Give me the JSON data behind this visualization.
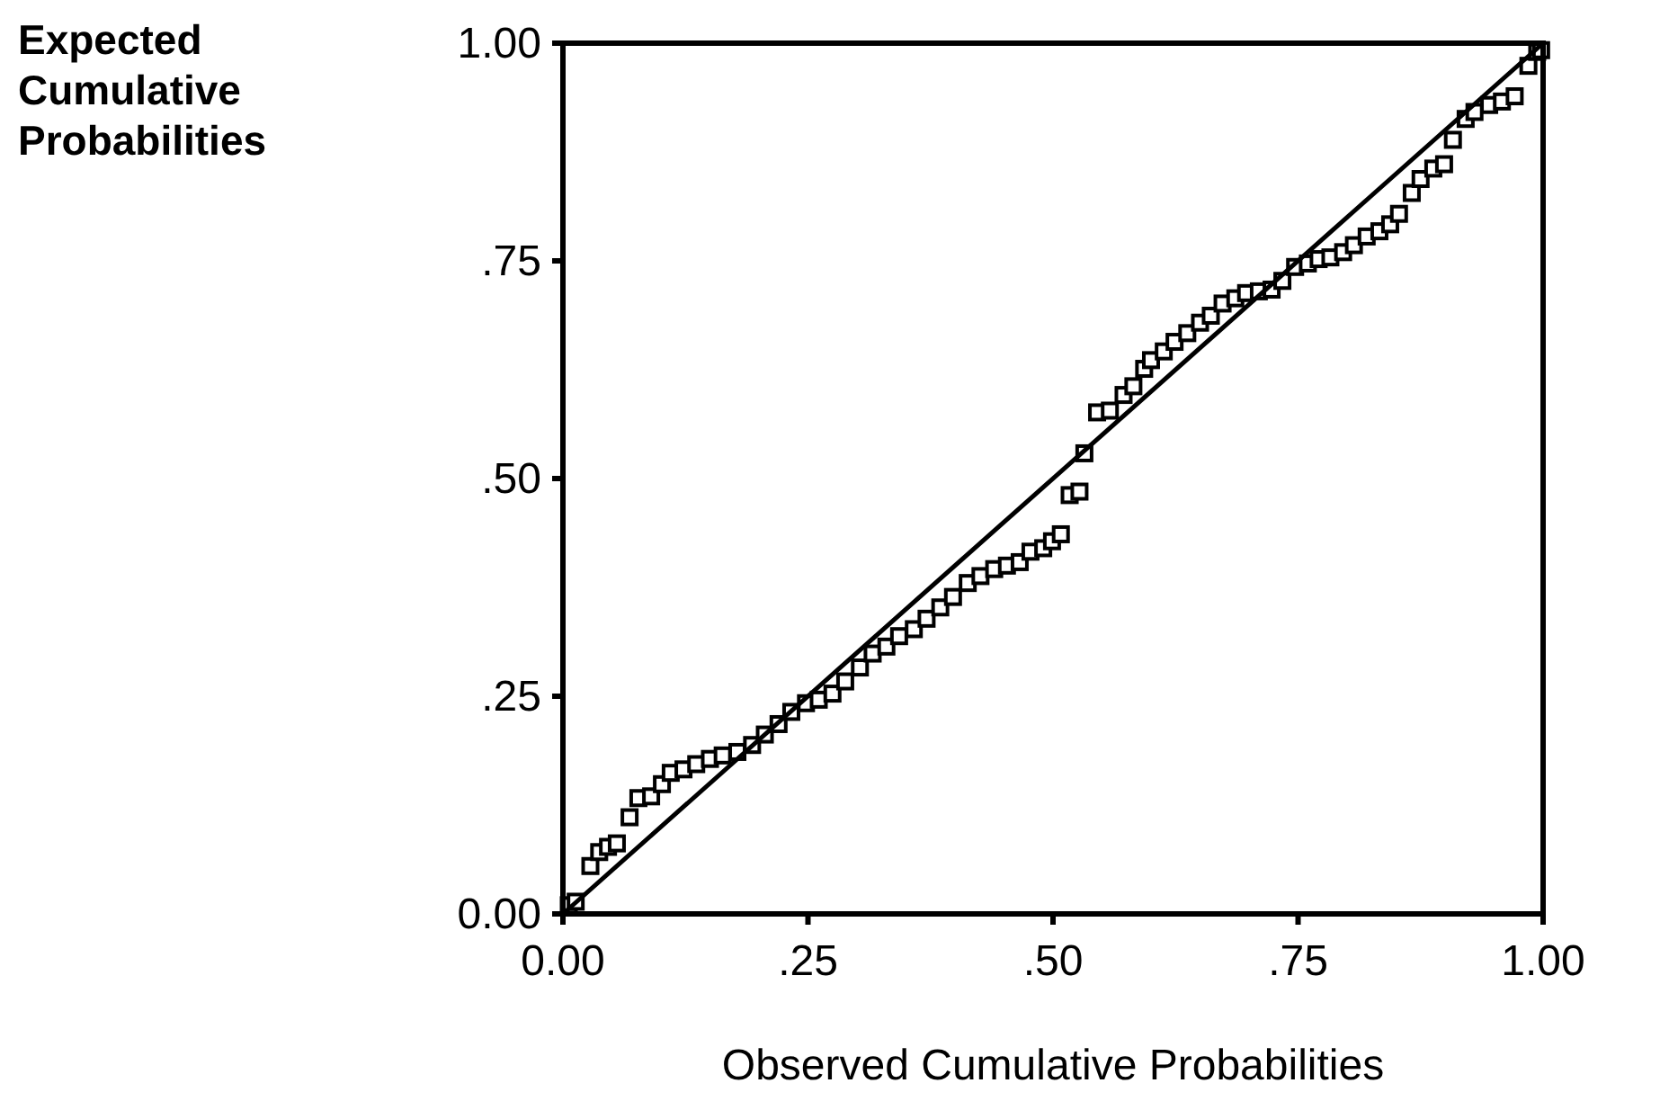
{
  "chart_data": {
    "type": "scatter",
    "xlabel": "Observed Cumulative Probabilities",
    "ylabel": "Expected Cumulative Probabilities",
    "xlim": [
      0,
      1
    ],
    "ylim": [
      0,
      1
    ],
    "xticks": [
      {
        "value": 0,
        "label": "0.00"
      },
      {
        "value": 0.25,
        "label": ".25"
      },
      {
        "value": 0.5,
        "label": ".50"
      },
      {
        "value": 0.75,
        "label": ".75"
      },
      {
        "value": 1,
        "label": "1.00"
      }
    ],
    "yticks": [
      {
        "value": 0,
        "label": "0.00"
      },
      {
        "value": 0.25,
        "label": ".25"
      },
      {
        "value": 0.5,
        "label": ".50"
      },
      {
        "value": 0.75,
        "label": ".75"
      },
      {
        "value": 1,
        "label": "1.00"
      }
    ],
    "grid": false,
    "series": [
      {
        "marker": "square",
        "color": "#000000",
        "x": [
          0.006,
          0.013,
          0.028,
          0.037,
          0.046,
          0.055,
          0.068,
          0.077,
          0.09,
          0.101,
          0.11,
          0.123,
          0.136,
          0.15,
          0.163,
          0.178,
          0.193,
          0.206,
          0.22,
          0.233,
          0.248,
          0.261,
          0.275,
          0.288,
          0.303,
          0.316,
          0.33,
          0.343,
          0.358,
          0.371,
          0.385,
          0.398,
          0.413,
          0.426,
          0.44,
          0.453,
          0.466,
          0.477,
          0.49,
          0.499,
          0.508,
          0.517,
          0.527,
          0.532,
          0.545,
          0.558,
          0.572,
          0.582,
          0.593,
          0.6,
          0.613,
          0.624,
          0.637,
          0.65,
          0.661,
          0.673,
          0.686,
          0.697,
          0.71,
          0.723,
          0.734,
          0.747,
          0.76,
          0.771,
          0.783,
          0.796,
          0.807,
          0.82,
          0.833,
          0.844,
          0.853,
          0.866,
          0.875,
          0.888,
          0.899,
          0.908,
          0.921,
          0.93,
          0.945,
          0.958,
          0.971,
          0.985,
          0.994,
          0.998
        ],
        "values": [
          0.01,
          0.014,
          0.055,
          0.071,
          0.077,
          0.081,
          0.111,
          0.133,
          0.135,
          0.149,
          0.162,
          0.166,
          0.172,
          0.178,
          0.182,
          0.186,
          0.194,
          0.206,
          0.218,
          0.232,
          0.242,
          0.246,
          0.253,
          0.267,
          0.283,
          0.299,
          0.307,
          0.319,
          0.327,
          0.339,
          0.352,
          0.364,
          0.38,
          0.388,
          0.396,
          0.4,
          0.404,
          0.416,
          0.42,
          0.428,
          0.436,
          0.481,
          0.485,
          0.529,
          0.576,
          0.578,
          0.596,
          0.606,
          0.626,
          0.636,
          0.646,
          0.657,
          0.667,
          0.679,
          0.687,
          0.701,
          0.707,
          0.713,
          0.715,
          0.717,
          0.727,
          0.743,
          0.747,
          0.752,
          0.754,
          0.76,
          0.768,
          0.778,
          0.784,
          0.792,
          0.804,
          0.828,
          0.844,
          0.856,
          0.861,
          0.889,
          0.913,
          0.921,
          0.929,
          0.933,
          0.939,
          0.974,
          0.99,
          0.992
        ]
      },
      {
        "type": "line",
        "marker": "none",
        "line_style": "solid",
        "color": "#000000",
        "x": [
          0,
          1
        ],
        "values": [
          0,
          1
        ]
      }
    ]
  }
}
